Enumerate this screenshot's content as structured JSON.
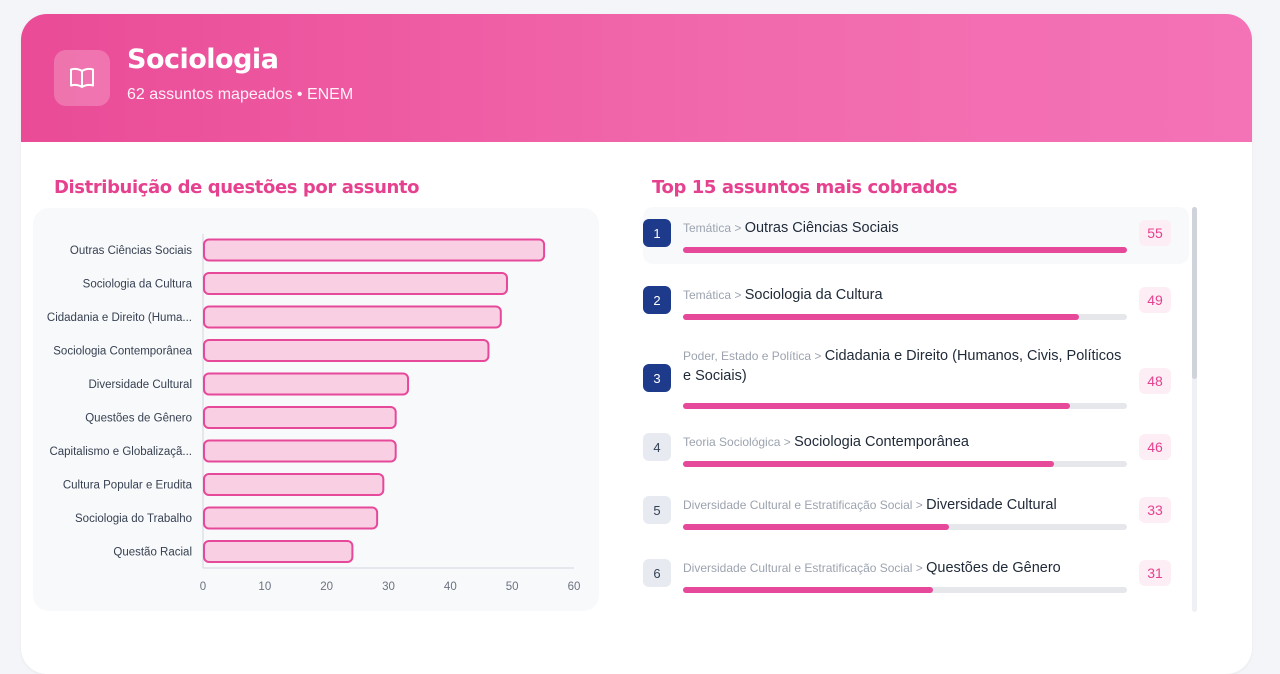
{
  "header": {
    "icon": "open-book-icon",
    "title": "Sociologia",
    "subtitle": "62 assuntos mapeados • ENEM"
  },
  "chart_section": {
    "title": "Distribuição de questões por assunto"
  },
  "list_section": {
    "title": "Top 15 assuntos mais cobrados"
  },
  "colors": {
    "accent": "#e6418f",
    "bar_fill": "#f9cfe3",
    "bar_stroke": "#e6489a",
    "rank_top": "#1e3a8a"
  },
  "chart_data": {
    "type": "bar",
    "orientation": "horizontal",
    "categories": [
      "Outras Ciências Sociais",
      "Sociologia da Cultura",
      "Cidadania e Direito (Huma...",
      "Sociologia Contemporânea",
      "Diversidade Cultural",
      "Questões de Gênero",
      "Capitalismo e Globalizaçã...",
      "Cultura Popular e Erudita",
      "Sociologia do Trabalho",
      "Questão Racial"
    ],
    "values": [
      55,
      49,
      48,
      46,
      33,
      31,
      31,
      29,
      28,
      24
    ],
    "xlim": [
      0,
      60
    ],
    "xticks": [
      "0",
      "10",
      "20",
      "30",
      "40",
      "50",
      "60"
    ],
    "grid": false
  },
  "top_list": {
    "max_value": 55,
    "items": [
      {
        "rank": "1",
        "category": "Temática",
        "sep": " > ",
        "name": "Outras Ciências Sociais",
        "count": "55",
        "value": 55
      },
      {
        "rank": "2",
        "category": "Temática",
        "sep": " > ",
        "name": "Sociologia da Cultura",
        "count": "49",
        "value": 49
      },
      {
        "rank": "3",
        "category": "Poder, Estado e Política",
        "sep": " > ",
        "name": "Cidadania e Direito (Humanos, Civis, Políticos e Sociais)",
        "count": "48",
        "value": 48
      },
      {
        "rank": "4",
        "category": "Teoria Sociológica",
        "sep": " > ",
        "name": "Sociologia Contemporânea",
        "count": "46",
        "value": 46
      },
      {
        "rank": "5",
        "category": "Diversidade Cultural e Estratificação Social",
        "sep": " > ",
        "name": "Diversidade Cultural",
        "count": "33",
        "value": 33
      },
      {
        "rank": "6",
        "category": "Diversidade Cultural e Estratificação Social",
        "sep": " > ",
        "name": "Questões de Gênero",
        "count": "31",
        "value": 31
      }
    ]
  }
}
